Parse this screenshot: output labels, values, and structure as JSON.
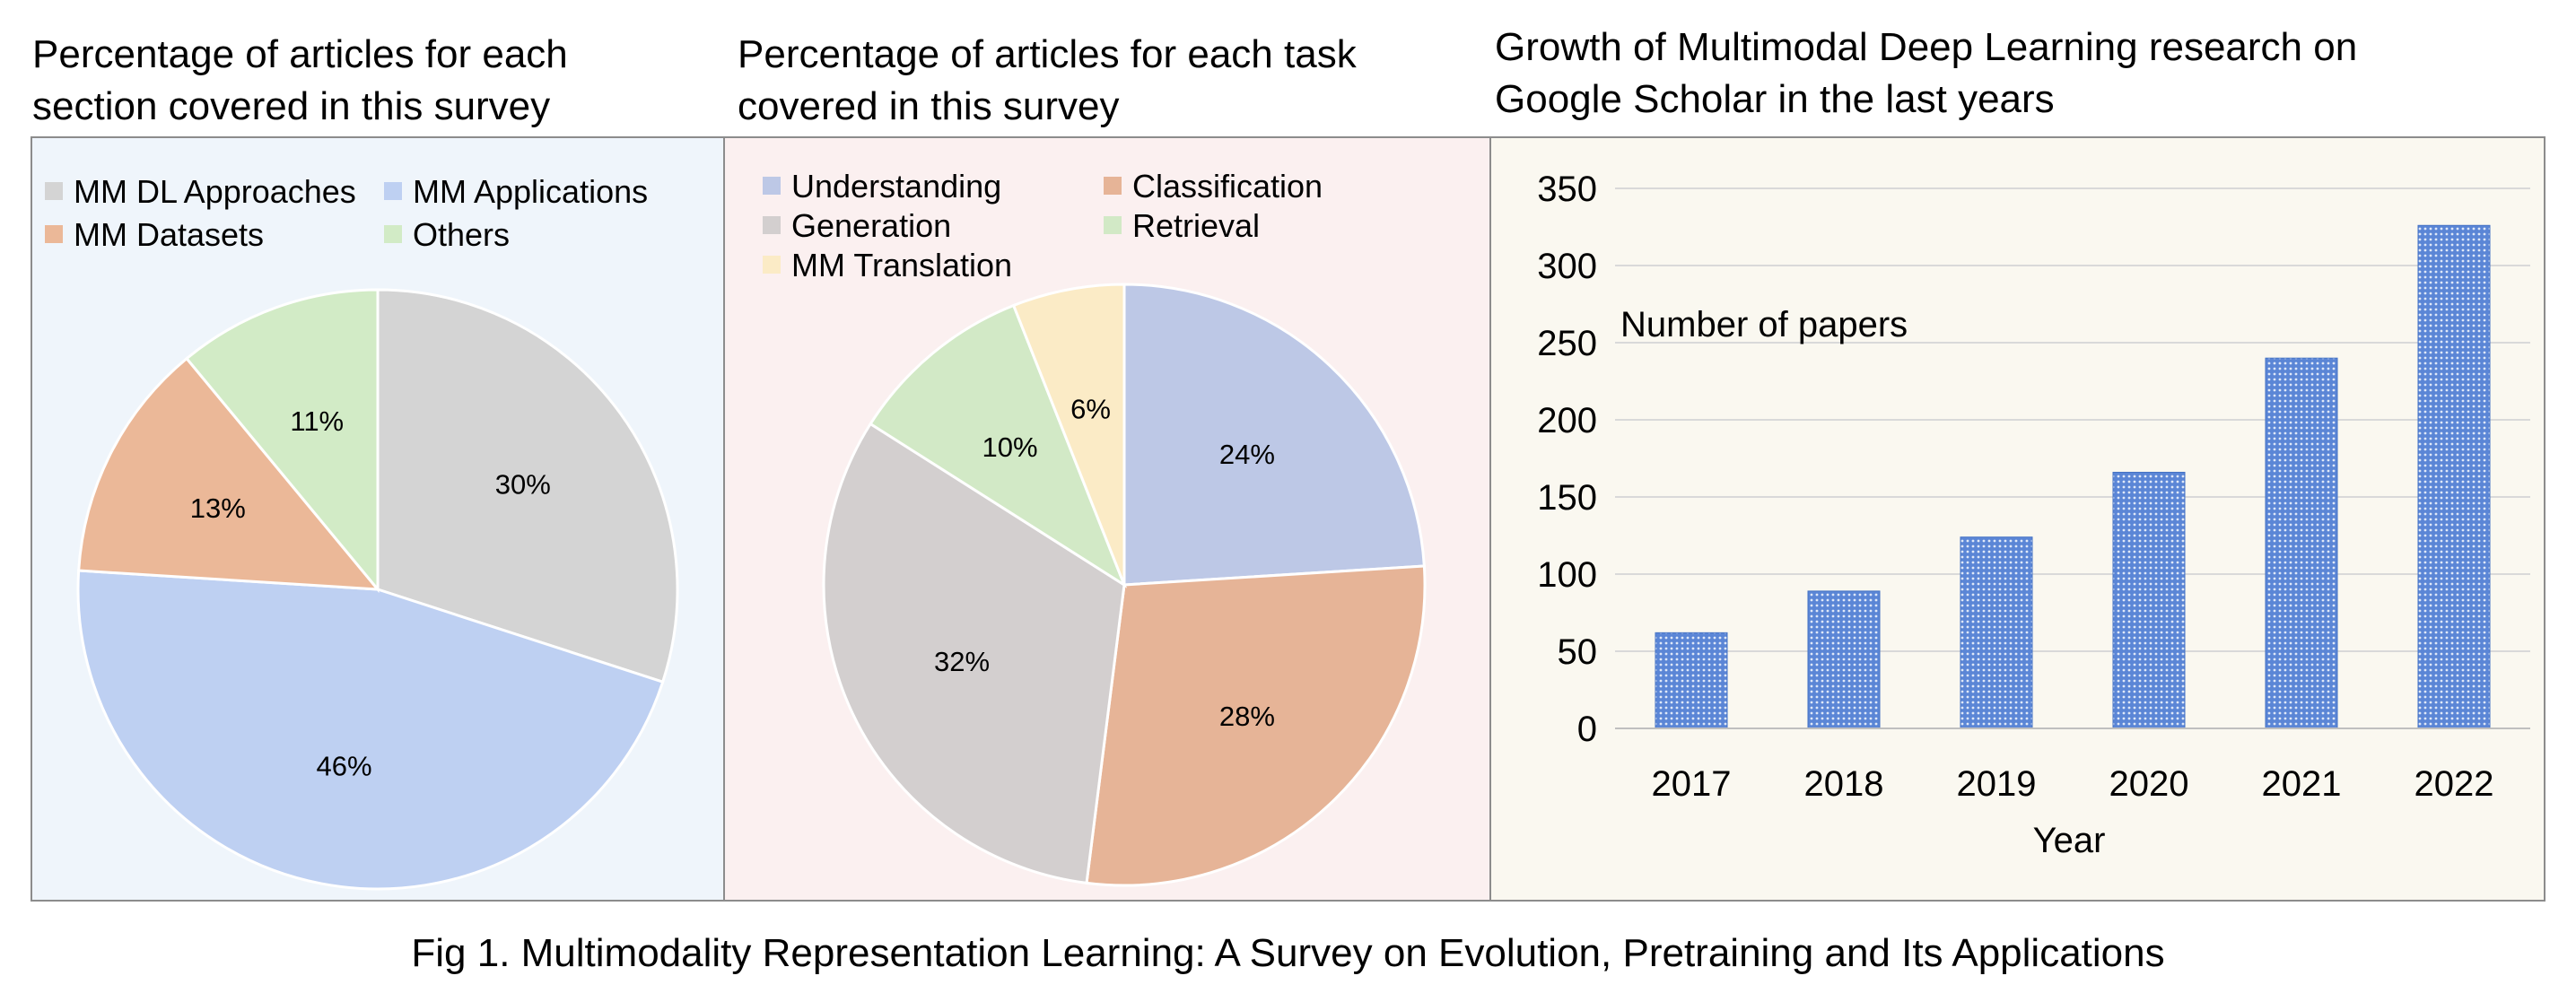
{
  "caption": "Fig 1. Multimodality Representation Learning: A Survey on Evolution, Pretraining and Its Applications",
  "chart_data": [
    {
      "type": "pie",
      "title_lines": [
        "Percentage of articles for each",
        "section covered in this survey"
      ],
      "legend_position": "top",
      "slices": [
        {
          "label": "MM DL Approaches",
          "value": 30,
          "display": "30%",
          "color": "#d4d4d4"
        },
        {
          "label": "MM Applications",
          "value": 46,
          "display": "46%",
          "color": "#bed0f2"
        },
        {
          "label": "MM Datasets",
          "value": 13,
          "display": "13%",
          "color": "#ebb898"
        },
        {
          "label": "Others",
          "value": 11,
          "display": "11%",
          "color": "#d2ebc6"
        }
      ]
    },
    {
      "type": "pie",
      "title_lines": [
        "Percentage of articles for each task",
        "covered in this survey"
      ],
      "legend_position": "top",
      "slices": [
        {
          "label": "Understanding",
          "value": 24,
          "display": "24%",
          "color": "#bdc8e6"
        },
        {
          "label": "Classification",
          "value": 28,
          "display": "28%",
          "color": "#e6b497"
        },
        {
          "label": "Generation",
          "value": 32,
          "display": "32%",
          "color": "#d3cfcf"
        },
        {
          "label": "Retrieval",
          "value": 10,
          "display": "10%",
          "color": "#d2e9c6"
        },
        {
          "label": "MM Translation",
          "value": 6,
          "display": "6%",
          "color": "#fbebc6"
        }
      ]
    },
    {
      "type": "bar",
      "title_lines": [
        "Growth of Multimodal Deep Learning research on",
        "Google Scholar in the last years"
      ],
      "categories": [
        "2017",
        "2018",
        "2019",
        "2020",
        "2021",
        "2022"
      ],
      "values": [
        62,
        89,
        124,
        166,
        240,
        326
      ],
      "xlabel": "Year",
      "ylabel": "Number of papers",
      "ylim": [
        0,
        350
      ],
      "yticks": [
        0,
        50,
        100,
        150,
        200,
        250,
        300,
        350
      ],
      "grid": true,
      "bar_color": "#4472c4"
    }
  ]
}
